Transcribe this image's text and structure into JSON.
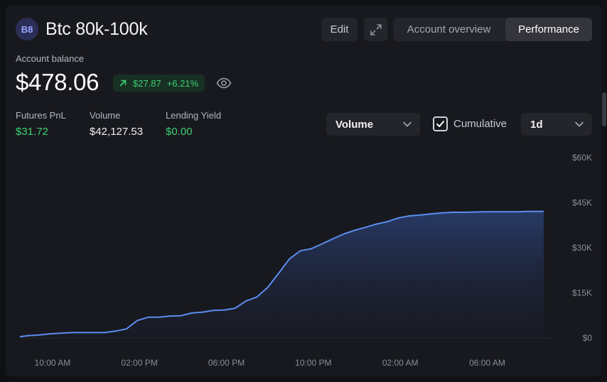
{
  "header": {
    "avatar_initials": "B8",
    "account_name": "Btc 80k-100k",
    "edit_label": "Edit",
    "expand_icon": "expand-icon",
    "tabs": [
      {
        "label": "Account overview",
        "active": false
      },
      {
        "label": "Performance",
        "active": true
      }
    ]
  },
  "balance": {
    "label": "Account balance",
    "value": "$478.06",
    "change_amount": "$27.87",
    "change_percent": "+6.21%",
    "change_icon": "arrow-up-right-icon",
    "visibility_icon": "eye-icon"
  },
  "stats": [
    {
      "label": "Futures PnL",
      "value": "$31.72",
      "color": "#3ecf72"
    },
    {
      "label": "Volume",
      "value": "$42,127.53",
      "color": "#eef0f4"
    },
    {
      "label": "Lending Yield",
      "value": "$0.00",
      "color": "#3ecf72"
    }
  ],
  "controls": {
    "metric_select": "Volume",
    "cumulative_label": "Cumulative",
    "cumulative_checked": true,
    "interval_select": "1d"
  },
  "colors": {
    "accent_line": "#5b8def",
    "positive": "#3ecf72"
  },
  "chart_data": {
    "type": "area",
    "title": "",
    "xlabel": "",
    "ylabel": "",
    "ylim": [
      0,
      60000
    ],
    "y_ticks": [
      {
        "value": 0,
        "label": "$0"
      },
      {
        "value": 15000,
        "label": "$15K"
      },
      {
        "value": 30000,
        "label": "$30K"
      },
      {
        "value": 45000,
        "label": "$45K"
      },
      {
        "value": 60000,
        "label": "$60K"
      }
    ],
    "x_range_hours": [
      8.5,
      32.6
    ],
    "x_ticks": [
      {
        "hour": 10,
        "label": "10:00 AM"
      },
      {
        "hour": 14,
        "label": "02:00 PM"
      },
      {
        "hour": 18,
        "label": "06:00 PM"
      },
      {
        "hour": 22,
        "label": "10:00 PM"
      },
      {
        "hour": 26,
        "label": "02:00 AM"
      },
      {
        "hour": 30,
        "label": "06:00 AM"
      }
    ],
    "series": [
      {
        "name": "Cumulative Volume",
        "x": [
          8.5,
          8.9,
          9.4,
          9.9,
          10.4,
          10.9,
          11.4,
          11.9,
          12.4,
          12.9,
          13.4,
          13.9,
          14.4,
          14.9,
          15.4,
          15.9,
          16.4,
          16.9,
          17.4,
          17.9,
          18.4,
          18.9,
          19.4,
          19.9,
          20.4,
          20.9,
          21.4,
          21.9,
          22.4,
          22.9,
          23.4,
          23.9,
          24.4,
          24.9,
          25.4,
          25.9,
          26.4,
          26.9,
          27.4,
          27.9,
          28.4,
          28.9,
          29.4,
          29.9,
          30.4,
          30.9,
          31.4,
          31.9,
          32.4,
          32.6
        ],
        "values": [
          400,
          800,
          1000,
          1400,
          1600,
          1800,
          1800,
          1800,
          1800,
          2300,
          3000,
          5800,
          6900,
          6900,
          7300,
          7400,
          8300,
          8600,
          9200,
          9300,
          9900,
          12300,
          13600,
          16800,
          21500,
          26300,
          29000,
          29700,
          31300,
          33000,
          34600,
          35800,
          36800,
          37900,
          38700,
          39900,
          40600,
          40900,
          41300,
          41600,
          41800,
          41800,
          41900,
          42000,
          42000,
          42000,
          42000,
          42100,
          42100,
          42127.53
        ]
      }
    ]
  }
}
